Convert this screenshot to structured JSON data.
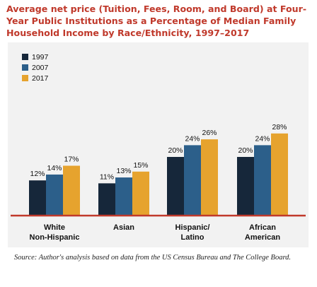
{
  "title": "Average net price (Tuition, Fees, Room, and Board) at Four-\nYear Public Institutions as a Percentage of Median Family\nHousehold Income by Race/Ethnicity, 1997–2017",
  "source": "Source: Author's analysis based on data from the US Census Bureau and The College Board.",
  "colors": {
    "1997": "#16273a",
    "2007": "#2c5f8a",
    "2017": "#e6a32e",
    "baseline": "#c0392b",
    "panel": "#f2f2f2"
  },
  "chart_data": {
    "type": "bar",
    "categories": [
      "White\nNon-Hispanic",
      "Asian",
      "Hispanic/\nLatino",
      "African\nAmerican"
    ],
    "series": [
      {
        "name": "1997",
        "values": [
          12,
          11,
          20,
          20
        ],
        "labels": [
          "12%",
          "11%",
          "20%",
          "20%"
        ]
      },
      {
        "name": "2007",
        "values": [
          14,
          13,
          24,
          24
        ],
        "labels": [
          "14%",
          "13%",
          "24%",
          "24%"
        ]
      },
      {
        "name": "2017",
        "values": [
          17,
          15,
          26,
          28
        ],
        "labels": [
          "17%",
          "15%",
          "26%",
          "28%"
        ]
      }
    ],
    "ylim": [
      0,
      32
    ],
    "grid": false,
    "legend": "top-left",
    "xlabel": "",
    "ylabel": ""
  }
}
